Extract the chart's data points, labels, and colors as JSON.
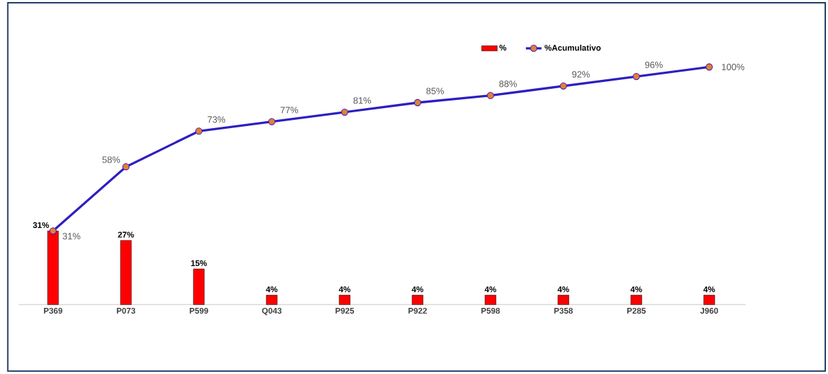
{
  "chart_data": {
    "type": "bar",
    "categories": [
      "P369",
      "P073",
      "P599",
      "Q043",
      "P925",
      "P922",
      "P598",
      "P358",
      "P285",
      "J960"
    ],
    "series": [
      {
        "name": "%",
        "color": "#ff0000",
        "values": [
          31,
          27,
          15,
          4,
          4,
          4,
          4,
          4,
          4,
          4
        ],
        "value_labels": [
          "31%",
          "27%",
          "15%",
          "4%",
          "4%",
          "4%",
          "4%",
          "4%",
          "4%",
          "4%"
        ]
      },
      {
        "name": "%Acumulativo",
        "type": "line",
        "color": "#2e1fc0",
        "marker": "circle",
        "values": [
          31,
          58,
          73,
          77,
          81,
          85,
          88,
          92,
          96,
          100
        ],
        "value_labels": [
          "31%",
          "58%",
          "73%",
          "77%",
          "81%",
          "85%",
          "88%",
          "92%",
          "96%",
          "100%"
        ]
      }
    ],
    "legend": "top"
  }
}
